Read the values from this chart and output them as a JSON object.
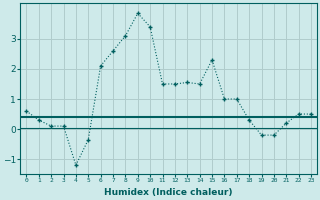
{
  "xlabel": "Humidex (Indice chaleur)",
  "x_values": [
    0,
    1,
    2,
    3,
    4,
    5,
    6,
    7,
    8,
    9,
    10,
    11,
    12,
    13,
    14,
    15,
    16,
    17,
    18,
    19,
    20,
    21,
    22,
    23
  ],
  "y_curve": [
    0.6,
    0.3,
    0.1,
    0.1,
    -1.2,
    -0.35,
    2.1,
    2.6,
    3.1,
    3.85,
    3.4,
    1.5,
    1.5,
    1.55,
    1.5,
    2.3,
    1.0,
    1.0,
    0.3,
    -0.2,
    -0.2,
    0.2,
    0.5,
    0.5
  ],
  "y_hline": 0.4,
  "y_hline2": 0.05,
  "bg_color": "#ceeaea",
  "grid_color": "#b0cccc",
  "line_color": "#005f5f",
  "ylim": [
    -1.5,
    4.2
  ],
  "yticks": [
    -1,
    0,
    1,
    2,
    3
  ],
  "xlim": [
    0,
    23
  ]
}
